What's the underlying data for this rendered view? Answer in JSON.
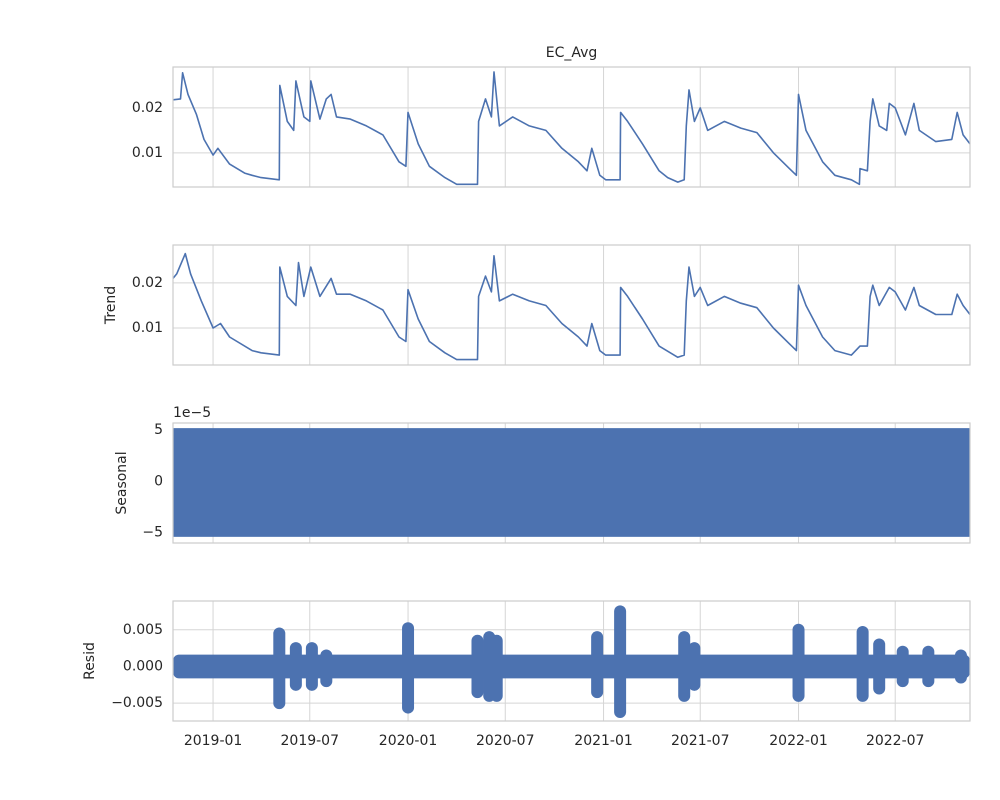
{
  "chart_data": [
    {
      "type": "line",
      "title": "EC_Avg",
      "color": "#4c72b0",
      "x": [
        "2018-10-18",
        "2018-11-01",
        "2018-11-05",
        "2018-11-15",
        "2018-12-01",
        "2018-12-15",
        "2019-01-01",
        "2019-01-10",
        "2019-02-01",
        "2019-03-01",
        "2019-03-15",
        "2019-04-01",
        "2019-05-05",
        "2019-05-06",
        "2019-05-20",
        "2019-06-01",
        "2019-06-05",
        "2019-06-20",
        "2019-07-01",
        "2019-07-03",
        "2019-07-20",
        "2019-08-01",
        "2019-08-10",
        "2019-08-20",
        "2019-09-15",
        "2019-10-15",
        "2019-11-15",
        "2019-12-15",
        "2019-12-28",
        "2020-01-01",
        "2020-01-20",
        "2020-02-10",
        "2020-03-10",
        "2020-04-01",
        "2020-05-10",
        "2020-05-12",
        "2020-05-25",
        "2020-06-05",
        "2020-06-10",
        "2020-06-20",
        "2020-07-15",
        "2020-08-15",
        "2020-09-15",
        "2020-10-15",
        "2020-11-15",
        "2020-12-01",
        "2020-12-10",
        "2020-12-25",
        "2021-01-05",
        "2021-02-01",
        "2021-02-02",
        "2021-02-15",
        "2021-03-15",
        "2021-04-15",
        "2021-05-01",
        "2021-05-20",
        "2021-06-01",
        "2021-06-05",
        "2021-06-10",
        "2021-06-20",
        "2021-07-01",
        "2021-07-15",
        "2021-08-15",
        "2021-09-15",
        "2021-10-15",
        "2021-11-15",
        "2021-12-15",
        "2021-12-28",
        "2022-01-01",
        "2022-01-15",
        "2022-02-15",
        "2022-03-10",
        "2022-04-10",
        "2022-04-25",
        "2022-04-26",
        "2022-05-10",
        "2022-05-15",
        "2022-05-20",
        "2022-06-01",
        "2022-06-15",
        "2022-06-20",
        "2022-07-01",
        "2022-07-20",
        "2022-08-05",
        "2022-08-15",
        "2022-09-15",
        "2022-10-15",
        "2022-10-25",
        "2022-11-05",
        "2022-11-18"
      ],
      "values": [
        0.0218,
        0.022,
        0.0278,
        0.023,
        0.0185,
        0.013,
        0.0095,
        0.011,
        0.0075,
        0.0055,
        0.005,
        0.0045,
        0.004,
        0.025,
        0.017,
        0.015,
        0.026,
        0.018,
        0.017,
        0.026,
        0.0175,
        0.022,
        0.023,
        0.018,
        0.0175,
        0.016,
        0.014,
        0.008,
        0.007,
        0.019,
        0.012,
        0.007,
        0.0045,
        0.003,
        0.003,
        0.017,
        0.022,
        0.018,
        0.028,
        0.016,
        0.018,
        0.016,
        0.015,
        0.011,
        0.008,
        0.006,
        0.011,
        0.005,
        0.004,
        0.004,
        0.019,
        0.017,
        0.012,
        0.006,
        0.0045,
        0.0035,
        0.004,
        0.016,
        0.024,
        0.017,
        0.02,
        0.015,
        0.017,
        0.0155,
        0.0145,
        0.01,
        0.0065,
        0.005,
        0.023,
        0.015,
        0.008,
        0.005,
        0.004,
        0.003,
        0.0065,
        0.006,
        0.017,
        0.022,
        0.016,
        0.015,
        0.021,
        0.02,
        0.014,
        0.021,
        0.015,
        0.0125,
        0.013,
        0.019,
        0.014,
        0.012
      ],
      "ylim": [
        0.0024,
        0.0291
      ],
      "yticks": [
        0.01,
        0.02
      ],
      "grid": true
    },
    {
      "type": "line",
      "ylabel": "Trend",
      "color": "#4c72b0",
      "x": [
        "2018-10-18",
        "2018-10-25",
        "2018-11-10",
        "2018-11-20",
        "2018-12-10",
        "2019-01-01",
        "2019-01-15",
        "2019-02-01",
        "2019-03-15",
        "2019-04-01",
        "2019-05-05",
        "2019-05-06",
        "2019-05-20",
        "2019-06-05",
        "2019-06-10",
        "2019-06-20",
        "2019-07-03",
        "2019-07-20",
        "2019-08-10",
        "2019-08-20",
        "2019-09-15",
        "2019-10-15",
        "2019-11-15",
        "2019-12-15",
        "2019-12-28",
        "2020-01-01",
        "2020-01-20",
        "2020-02-10",
        "2020-03-10",
        "2020-04-01",
        "2020-05-10",
        "2020-05-12",
        "2020-05-25",
        "2020-06-05",
        "2020-06-10",
        "2020-06-20",
        "2020-07-15",
        "2020-08-15",
        "2020-09-15",
        "2020-10-15",
        "2020-11-15",
        "2020-12-01",
        "2020-12-10",
        "2020-12-25",
        "2021-01-05",
        "2021-02-01",
        "2021-02-02",
        "2021-02-15",
        "2021-03-15",
        "2021-04-15",
        "2021-05-20",
        "2021-06-01",
        "2021-06-05",
        "2021-06-10",
        "2021-06-20",
        "2021-07-01",
        "2021-07-15",
        "2021-08-15",
        "2021-09-15",
        "2021-10-15",
        "2021-11-15",
        "2021-12-15",
        "2021-12-28",
        "2022-01-01",
        "2022-01-15",
        "2022-02-15",
        "2022-03-10",
        "2022-04-10",
        "2022-04-26",
        "2022-05-10",
        "2022-05-15",
        "2022-05-20",
        "2022-06-01",
        "2022-06-20",
        "2022-07-01",
        "2022-07-20",
        "2022-08-05",
        "2022-08-15",
        "2022-09-15",
        "2022-10-15",
        "2022-10-25",
        "2022-11-05",
        "2022-11-18"
      ],
      "values": [
        0.021,
        0.022,
        0.0265,
        0.022,
        0.016,
        0.01,
        0.011,
        0.008,
        0.005,
        0.0045,
        0.004,
        0.0235,
        0.017,
        0.015,
        0.0245,
        0.017,
        0.0235,
        0.017,
        0.021,
        0.0175,
        0.0175,
        0.016,
        0.014,
        0.008,
        0.007,
        0.0185,
        0.012,
        0.007,
        0.0045,
        0.003,
        0.003,
        0.017,
        0.0215,
        0.018,
        0.026,
        0.016,
        0.0175,
        0.016,
        0.015,
        0.011,
        0.008,
        0.006,
        0.011,
        0.005,
        0.004,
        0.004,
        0.019,
        0.017,
        0.012,
        0.006,
        0.0035,
        0.004,
        0.016,
        0.0235,
        0.017,
        0.019,
        0.015,
        0.017,
        0.0155,
        0.0145,
        0.01,
        0.0065,
        0.005,
        0.0195,
        0.015,
        0.008,
        0.005,
        0.004,
        0.006,
        0.006,
        0.017,
        0.0195,
        0.015,
        0.019,
        0.018,
        0.014,
        0.019,
        0.015,
        0.013,
        0.013,
        0.0175,
        0.015,
        0.013
      ],
      "ylim": [
        0.0018,
        0.0284
      ],
      "yticks": [
        0.01,
        0.02
      ],
      "grid": true
    },
    {
      "type": "band",
      "ylabel": "Seasonal",
      "color": "#4c72b0",
      "offset_label": "1e−5",
      "high": 5.2e-05,
      "low": -5.4e-05,
      "ylim": [
        -6e-05,
        5.7e-05
      ],
      "yticks": [
        {
          "value": -5e-05,
          "label": "−5"
        },
        0,
        {
          "value": 5e-05,
          "label": "5"
        }
      ],
      "grid": true
    },
    {
      "type": "range",
      "ylabel": "Resid",
      "color": "#4c72b0",
      "base_high": 0.0008,
      "base_low": -0.0008,
      "x": [
        "2019-05-05",
        "2019-06-05",
        "2019-07-05",
        "2019-08-01",
        "2020-01-01",
        "2020-05-10",
        "2020-06-01",
        "2020-06-15",
        "2020-12-20",
        "2021-02-01",
        "2021-06-01",
        "2021-06-20",
        "2022-01-01",
        "2022-05-01",
        "2022-06-01",
        "2022-07-15",
        "2022-09-01",
        "2022-11-01"
      ],
      "high": [
        0.0045,
        0.0025,
        0.0025,
        0.0015,
        0.0052,
        0.0035,
        0.004,
        0.0035,
        0.004,
        0.0075,
        0.004,
        0.0025,
        0.005,
        0.0047,
        0.003,
        0.002,
        0.002,
        0.0015
      ],
      "low": [
        -0.005,
        -0.0025,
        -0.0025,
        -0.002,
        -0.0056,
        -0.0035,
        -0.004,
        -0.004,
        -0.0035,
        -0.0062,
        -0.004,
        -0.0025,
        -0.004,
        -0.004,
        -0.003,
        -0.002,
        -0.002,
        -0.0015
      ],
      "ylim": [
        -0.00743,
        0.00892
      ],
      "yticks": [
        {
          "value": -0.005,
          "label": "−0.005"
        },
        {
          "value": 0,
          "label": "0.000"
        },
        {
          "value": 0.005,
          "label": "0.005"
        }
      ],
      "xlim": [
        "2018-10-18",
        "2022-11-18"
      ],
      "xticks": [
        {
          "value": "2019-01-01",
          "label": "2019-01"
        },
        {
          "value": "2019-07-01",
          "label": "2019-07"
        },
        {
          "value": "2020-01-01",
          "label": "2020-01"
        },
        {
          "value": "2020-07-01",
          "label": "2020-07"
        },
        {
          "value": "2021-01-01",
          "label": "2021-01"
        },
        {
          "value": "2021-07-01",
          "label": "2021-07"
        },
        {
          "value": "2022-01-01",
          "label": "2022-01"
        },
        {
          "value": "2022-07-01",
          "label": "2022-07"
        }
      ],
      "grid": true
    }
  ]
}
